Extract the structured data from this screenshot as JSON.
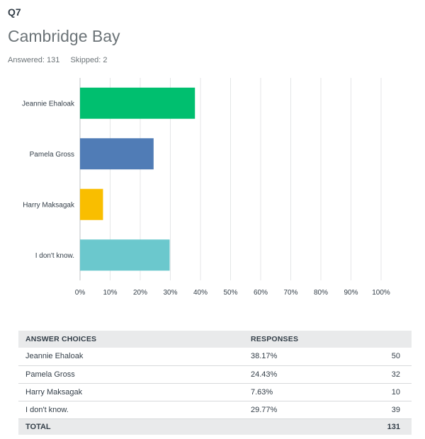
{
  "question": {
    "number": "Q7",
    "title": "Cambridge Bay",
    "answered": "Answered: 131",
    "skipped": "Skipped: 2"
  },
  "chart_data": {
    "type": "bar",
    "orientation": "horizontal",
    "categories": [
      "Jeannie Ehaloak",
      "Pamela Gross",
      "Harry Maksagak",
      "I don't know."
    ],
    "values": [
      38.17,
      24.43,
      7.63,
      29.77
    ],
    "colors": [
      "#00bf6f",
      "#507cb6",
      "#f9be00",
      "#6bc8cd"
    ],
    "xlim": [
      0,
      100
    ],
    "ticks": [
      "0%",
      "10%",
      "20%",
      "30%",
      "40%",
      "50%",
      "60%",
      "70%",
      "80%",
      "90%",
      "100%"
    ],
    "grid": true
  },
  "table": {
    "headers": [
      "ANSWER CHOICES",
      "RESPONSES"
    ],
    "rows": [
      {
        "choice": "Jeannie Ehaloak",
        "percent": "38.17%",
        "count": "50"
      },
      {
        "choice": "Pamela Gross",
        "percent": "24.43%",
        "count": "32"
      },
      {
        "choice": "Harry Maksagak",
        "percent": "7.63%",
        "count": "10"
      },
      {
        "choice": "I don't know.",
        "percent": "29.77%",
        "count": "39"
      }
    ],
    "total_label": "TOTAL",
    "total_count": "131"
  }
}
